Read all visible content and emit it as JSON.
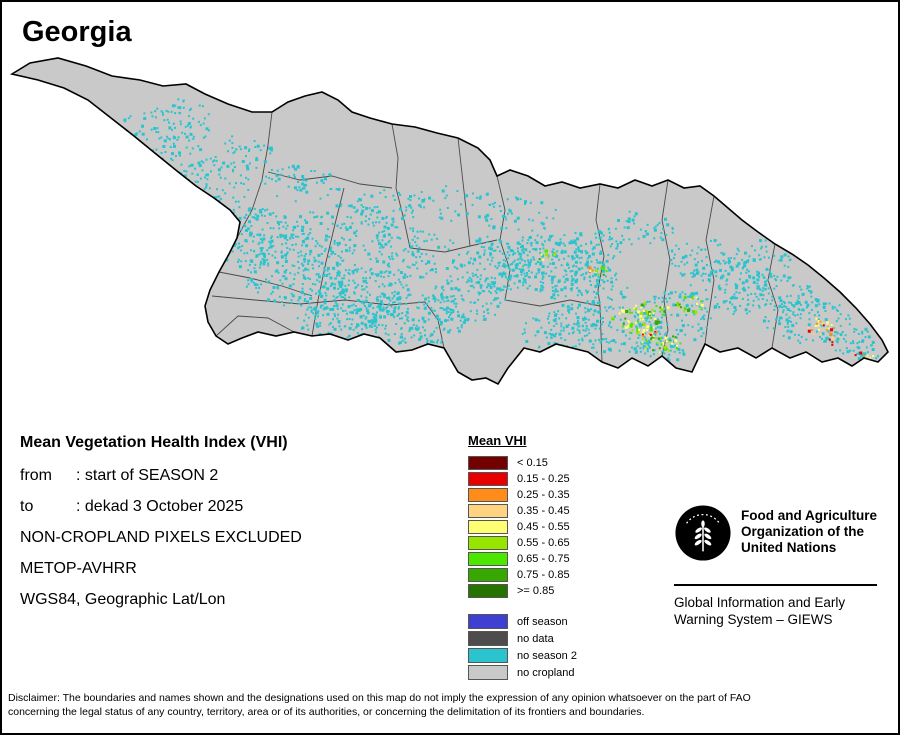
{
  "page": {
    "title": "Georgia"
  },
  "map": {
    "country": "Georgia",
    "country_fill": "#c9c9c9",
    "border_color": "#000000"
  },
  "info": {
    "heading": "Mean Vegetation Health Index (VHI)",
    "from_label": "from",
    "from_value": ": start of SEASON 2",
    "to_label": "to",
    "to_value": ": dekad 3 October 2025",
    "line_excluded": "NON-CROPLAND PIXELS EXCLUDED",
    "line_sensor": "METOP-AVHRR",
    "line_projection": "WGS84, Geographic Lat/Lon"
  },
  "legend": {
    "title": "Mean VHI",
    "vhi_classes": [
      {
        "label": "< 0.15",
        "color": "#730000"
      },
      {
        "label": "0.15 - 0.25",
        "color": "#e60000"
      },
      {
        "label": "0.25 - 0.35",
        "color": "#ff8c1a"
      },
      {
        "label": "0.35 - 0.45",
        "color": "#ffd37f"
      },
      {
        "label": "0.45 - 0.55",
        "color": "#ffff73"
      },
      {
        "label": "0.55 - 0.65",
        "color": "#98e600"
      },
      {
        "label": "0.65 - 0.75",
        "color": "#4ce600"
      },
      {
        "label": "0.75 - 0.85",
        "color": "#38a800"
      },
      {
        "label": ">= 0.85",
        "color": "#267300"
      }
    ],
    "status_classes": [
      {
        "label": "off season",
        "color": "#3f3fd2"
      },
      {
        "label": "no data",
        "color": "#4d4d4d"
      },
      {
        "label": "no season 2",
        "color": "#2bc4ce"
      },
      {
        "label": "no cropland",
        "color": "#c9c9c9"
      }
    ]
  },
  "footer": {
    "org_lines": [
      "Food and Agriculture",
      "Organization of the",
      "United Nations"
    ],
    "giews_lines": [
      "Global Information and Early",
      "Warning System – GIEWS"
    ],
    "logo_icon": "fao-wheat-emblem"
  },
  "disclaimer": {
    "lines": [
      "Disclaimer: The boundaries and names shown and the designations used on this map do not imply the expression of any opinion whatsoever on the part of FAO",
      "concerning the legal status of any country, territory, area or of its authorities, or concerning the delimitation of its frontiers and boundaries."
    ]
  }
}
